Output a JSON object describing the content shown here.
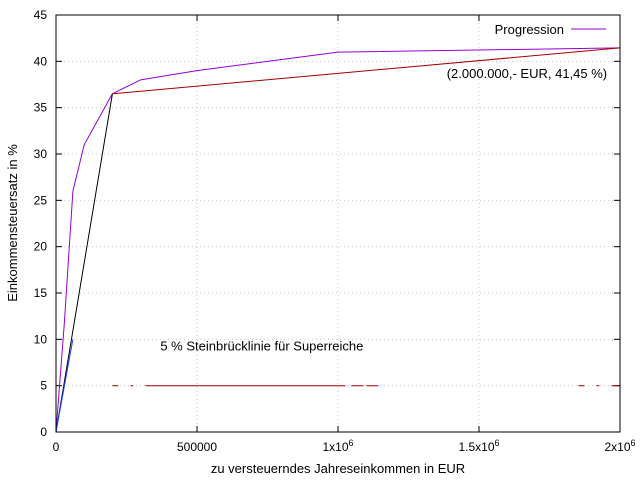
{
  "chart_data": {
    "type": "line",
    "xlabel": "zu versteuerndes Jahreseinkommen in EUR",
    "ylabel": "Einkommensteuersatz in %",
    "xlim": [
      0,
      2000000
    ],
    "ylim": [
      0,
      45
    ],
    "grid": true,
    "legend_position": "top-right",
    "x_ticks": [
      {
        "value": 0,
        "label": "0"
      },
      {
        "value": 500000,
        "label": "500000"
      },
      {
        "value": 1000000,
        "label": "1x10",
        "exp": "6"
      },
      {
        "value": 1500000,
        "label": "1.5x10",
        "exp": "6"
      },
      {
        "value": 2000000,
        "label": "2x10",
        "exp": "6"
      }
    ],
    "y_ticks": [
      {
        "value": 0,
        "label": "0"
      },
      {
        "value": 5,
        "label": "5"
      },
      {
        "value": 10,
        "label": "10"
      },
      {
        "value": 15,
        "label": "15"
      },
      {
        "value": 20,
        "label": "20"
      },
      {
        "value": 25,
        "label": "25"
      },
      {
        "value": 30,
        "label": "30"
      },
      {
        "value": 35,
        "label": "35"
      },
      {
        "value": 40,
        "label": "40"
      },
      {
        "value": 45,
        "label": "45"
      }
    ],
    "series": [
      {
        "name": "Progression",
        "color": "#9400d3",
        "x": [
          0,
          30000,
          60000,
          100000,
          200000,
          300000,
          500000,
          1000000,
          2000000
        ],
        "y": [
          0,
          12,
          26,
          31,
          36.5,
          38,
          39,
          41,
          41.45
        ]
      },
      {
        "color": "#000000",
        "x": [
          0,
          200000
        ],
        "y": [
          0,
          36.5
        ]
      },
      {
        "color": "#a40000",
        "x": [
          200000,
          2000000
        ],
        "y": [
          36.5,
          41.45
        ]
      },
      {
        "color": "#1e40ff",
        "x": [
          0,
          60000
        ],
        "y": [
          0,
          10
        ]
      },
      {
        "color": "#a40000",
        "dashed": true,
        "x": [
          200000,
          2000000
        ],
        "y": [
          5,
          5
        ]
      }
    ],
    "annotations": [
      {
        "text": "(2.000.000,- EUR, 41,45 %)",
        "x": 1670000,
        "y": 38.2
      },
      {
        "text": "5 % Steinbrücklinie für Superreiche",
        "x": 730000,
        "y": 8.8
      }
    ]
  }
}
